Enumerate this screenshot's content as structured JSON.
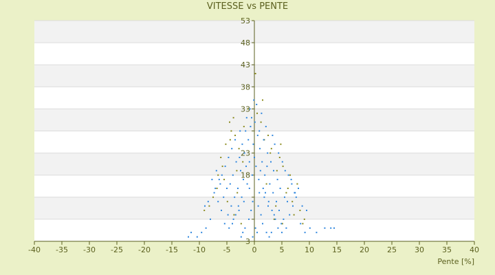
{
  "chart_data": {
    "type": "scatter",
    "title": "VITESSE vs PENTE",
    "xlabel": "Pente [%]",
    "ylabel": "",
    "xlim": [
      -40,
      40
    ],
    "ylim": [
      3,
      53
    ],
    "xticks": [
      -40,
      -35,
      -30,
      -25,
      -20,
      -15,
      -10,
      -5,
      0,
      5,
      10,
      15,
      20,
      25,
      30,
      35,
      40
    ],
    "yticks": [
      3,
      8,
      13,
      18,
      23,
      28,
      33,
      38,
      43,
      48,
      53
    ],
    "ytick_labels_shown": [
      3,
      18,
      23,
      33,
      38,
      43,
      48,
      53
    ],
    "grid": "horizontal alternating bands",
    "legend": "none",
    "colors": {
      "background": "#ebf1c8",
      "plot_band_light": "#ffffff",
      "plot_band_dark": "#f2f2f2",
      "series_blue": "#2e86de",
      "series_olive": "#8a8a1e",
      "axis": "#5a5f1e"
    },
    "series": [
      {
        "color": "#8a8a1e",
        "points": [
          [
            -4.5,
            30
          ],
          [
            -3.8,
            31
          ],
          [
            -4.2,
            28
          ],
          [
            -3.5,
            27
          ],
          [
            -5.2,
            25
          ],
          [
            -6.1,
            22
          ],
          [
            -2.8,
            24
          ],
          [
            -1.9,
            29
          ],
          [
            0.5,
            32
          ],
          [
            1.2,
            30
          ],
          [
            2.5,
            27
          ],
          [
            3.1,
            24
          ],
          [
            4.6,
            22
          ],
          [
            5.2,
            20
          ],
          [
            6.5,
            18
          ],
          [
            7.8,
            16
          ],
          [
            -6.8,
            15
          ],
          [
            -7.5,
            13
          ],
          [
            -8.2,
            11
          ],
          [
            -5.5,
            17
          ],
          [
            -3.2,
            19
          ],
          [
            -2.1,
            21
          ],
          [
            1.8,
            26
          ],
          [
            2.9,
            23
          ],
          [
            4.1,
            19
          ],
          [
            5.8,
            14
          ],
          [
            6.9,
            12
          ],
          [
            8.3,
            10
          ],
          [
            9.1,
            8
          ],
          [
            -1.2,
            33
          ],
          [
            0.2,
            41
          ],
          [
            1.5,
            35
          ],
          [
            -4.9,
            12
          ],
          [
            -3.7,
            9
          ],
          [
            -2.4,
            7
          ],
          [
            3.6,
            8
          ],
          [
            5.1,
            7
          ],
          [
            7.2,
            9
          ],
          [
            8.8,
            7
          ],
          [
            -9.1,
            10
          ],
          [
            -5.8,
            20
          ],
          [
            -4.4,
            26
          ],
          [
            -3.1,
            14
          ],
          [
            2.2,
            16
          ],
          [
            3.9,
            11
          ],
          [
            6.1,
            15
          ],
          [
            -6.6,
            18
          ],
          [
            4.8,
            25
          ]
        ]
      },
      {
        "color": "#2e86de",
        "points": [
          [
            0.0,
            22
          ],
          [
            0.3,
            20
          ],
          [
            -0.4,
            18
          ],
          [
            0.8,
            17
          ],
          [
            -0.9,
            21
          ],
          [
            1.1,
            19
          ],
          [
            -1.3,
            16
          ],
          [
            1.6,
            15
          ],
          [
            -1.8,
            23
          ],
          [
            2.0,
            14
          ],
          [
            -2.3,
            13
          ],
          [
            2.6,
            12
          ],
          [
            -2.9,
            11
          ],
          [
            3.2,
            10
          ],
          [
            -3.4,
            9
          ],
          [
            3.8,
            8
          ],
          [
            -4.0,
            7
          ],
          [
            4.3,
            6
          ],
          [
            -4.6,
            6
          ],
          [
            5.0,
            5
          ],
          [
            -0.2,
            25
          ],
          [
            0.6,
            27
          ],
          [
            -0.7,
            29
          ],
          [
            1.0,
            24
          ],
          [
            -1.1,
            26
          ],
          [
            1.4,
            21
          ],
          [
            -1.5,
            20
          ],
          [
            1.9,
            18
          ],
          [
            -2.0,
            17
          ],
          [
            2.3,
            20
          ],
          [
            -2.5,
            19
          ],
          [
            2.8,
            16
          ],
          [
            -3.0,
            15
          ],
          [
            3.4,
            14
          ],
          [
            -3.6,
            13
          ],
          [
            4.0,
            12
          ],
          [
            -4.2,
            11
          ],
          [
            4.5,
            10
          ],
          [
            -4.8,
            9
          ],
          [
            5.3,
            8
          ],
          [
            -5.4,
            7
          ],
          [
            5.8,
            6
          ],
          [
            -6.0,
            10
          ],
          [
            6.4,
            9
          ],
          [
            -6.6,
            12
          ],
          [
            7.0,
            11
          ],
          [
            -7.3,
            14
          ],
          [
            7.6,
            13
          ],
          [
            -8.0,
            8
          ],
          [
            8.4,
            7
          ],
          [
            -8.8,
            6
          ],
          [
            9.2,
            5
          ],
          [
            -9.6,
            5
          ],
          [
            10.1,
            6
          ],
          [
            11.3,
            5
          ],
          [
            12.8,
            6
          ],
          [
            13.9,
            6
          ],
          [
            14.5,
            6
          ],
          [
            -10.4,
            4
          ],
          [
            -11.5,
            5
          ],
          [
            -12.0,
            4
          ],
          [
            0.1,
            30
          ],
          [
            -0.5,
            31
          ],
          [
            0.9,
            28
          ],
          [
            -1.6,
            28
          ],
          [
            1.7,
            26
          ],
          [
            -2.2,
            25
          ],
          [
            2.4,
            23
          ],
          [
            -2.7,
            22
          ],
          [
            3.0,
            21
          ],
          [
            -3.3,
            21
          ],
          [
            3.5,
            19
          ],
          [
            -3.9,
            18
          ],
          [
            4.2,
            17
          ],
          [
            -4.4,
            16
          ],
          [
            4.7,
            15
          ],
          [
            -5.0,
            15
          ],
          [
            5.5,
            13
          ],
          [
            -5.6,
            13
          ],
          [
            6.0,
            12
          ],
          [
            -6.2,
            16
          ],
          [
            6.7,
            17
          ],
          [
            -6.9,
            19
          ],
          [
            7.3,
            14
          ],
          [
            -7.7,
            17
          ],
          [
            8.0,
            15
          ],
          [
            -8.4,
            12
          ],
          [
            8.7,
            11
          ],
          [
            -9.0,
            11
          ],
          [
            9.5,
            10
          ],
          [
            -0.1,
            35
          ],
          [
            0.4,
            34
          ],
          [
            -0.8,
            33
          ],
          [
            1.3,
            32
          ],
          [
            -1.4,
            31
          ],
          [
            2.1,
            29
          ],
          [
            -2.6,
            28
          ],
          [
            3.3,
            27
          ],
          [
            -3.5,
            26
          ],
          [
            3.7,
            25
          ],
          [
            -4.1,
            24
          ],
          [
            4.4,
            23
          ],
          [
            -4.7,
            22
          ],
          [
            5.1,
            21
          ],
          [
            -5.3,
            20
          ],
          [
            5.6,
            19
          ],
          [
            -5.9,
            18
          ],
          [
            6.2,
            18
          ],
          [
            -6.4,
            17
          ],
          [
            6.8,
            16
          ],
          [
            -7.1,
            15
          ],
          [
            7.4,
            14
          ],
          [
            -0.3,
            12
          ],
          [
            0.7,
            11
          ],
          [
            -0.6,
            10
          ],
          [
            1.2,
            9
          ],
          [
            -1.0,
            8
          ],
          [
            1.5,
            7
          ],
          [
            -1.7,
            6
          ],
          [
            2.2,
            5
          ],
          [
            -2.1,
            5
          ],
          [
            2.7,
            4
          ],
          [
            -2.4,
            4
          ],
          [
            3.1,
            5
          ],
          [
            0.2,
            6
          ],
          [
            0.5,
            5
          ],
          [
            -0.3,
            4
          ],
          [
            0.9,
            14
          ],
          [
            -0.9,
            15
          ],
          [
            1.8,
            13
          ],
          [
            -1.9,
            12
          ],
          [
            2.5,
            11
          ],
          [
            -2.8,
            10
          ],
          [
            3.6,
            9
          ],
          [
            -3.8,
            8
          ],
          [
            4.9,
            7
          ]
        ]
      }
    ]
  }
}
